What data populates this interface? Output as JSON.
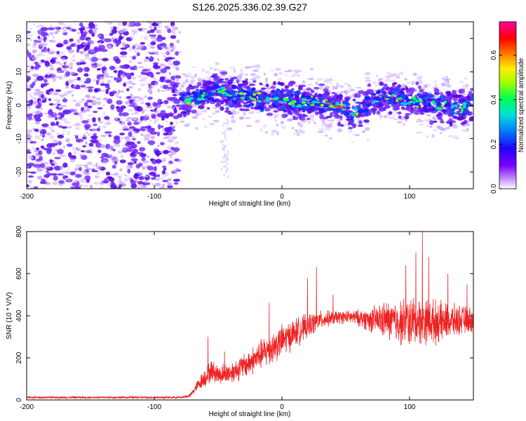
{
  "title": "S126.2025.336.02.39.G27",
  "colors": {
    "snr_line": "#ee2222",
    "spectrogram_core": "#3a00cc",
    "spectrogram_halo": "#c9a8ff",
    "axis": "#000000",
    "background": "#ffffff"
  },
  "chart_data": [
    {
      "type": "heatmap",
      "name": "spectrogram",
      "xlabel": "Height of straight line (km)",
      "ylabel": "Frequency (Hz)",
      "xlim": [
        -200,
        150
      ],
      "ylim": [
        -25,
        25
      ],
      "x_ticks": [
        -200,
        -100,
        0,
        100
      ],
      "x_tick_labels": [
        "-200",
        "-100",
        "0",
        "100"
      ],
      "y_ticks": [
        -20,
        -10,
        0,
        10,
        20
      ],
      "y_tick_labels": [
        "-20",
        "-10",
        "0",
        "10",
        "20"
      ],
      "noise_region": {
        "x_from": -200,
        "x_to": -80
      },
      "signal_centerline": [
        {
          "x": -80,
          "y": 1
        },
        {
          "x": -70,
          "y": 2
        },
        {
          "x": -60,
          "y": 3
        },
        {
          "x": -50,
          "y": 5
        },
        {
          "x": -40,
          "y": 3
        },
        {
          "x": -30,
          "y": 3
        },
        {
          "x": -20,
          "y": 2
        },
        {
          "x": -10,
          "y": 1
        },
        {
          "x": 0,
          "y": 2
        },
        {
          "x": 10,
          "y": 1
        },
        {
          "x": 20,
          "y": 1
        },
        {
          "x": 30,
          "y": 0.5
        },
        {
          "x": 40,
          "y": 0
        },
        {
          "x": 50,
          "y": -0.5
        },
        {
          "x": 55,
          "y": -3
        },
        {
          "x": 60,
          "y": -1
        },
        {
          "x": 70,
          "y": 1
        },
        {
          "x": 80,
          "y": 2
        },
        {
          "x": 90,
          "y": 2
        },
        {
          "x": 100,
          "y": 1
        },
        {
          "x": 110,
          "y": 1
        },
        {
          "x": 120,
          "y": 0
        },
        {
          "x": 130,
          "y": 0
        },
        {
          "x": 140,
          "y": -1
        },
        {
          "x": 150,
          "y": 0
        }
      ]
    },
    {
      "type": "colorbar",
      "name": "amplitude-colorbar",
      "label": "Normalized spectral amplitude",
      "range": [
        0,
        0.75
      ],
      "ticks": [
        0.0,
        0.2,
        0.4,
        0.6
      ],
      "tick_labels": [
        "0.0",
        "0.2",
        "0.4",
        "0.6"
      ],
      "colors": [
        "#ffffff",
        "#c8a0ff",
        "#7a00ff",
        "#2200ff",
        "#0077ff",
        "#00dddd",
        "#00ff55",
        "#99ff00",
        "#ffee00",
        "#ff7700",
        "#ff0000",
        "#ff0099"
      ]
    },
    {
      "type": "line",
      "name": "snr",
      "xlabel": "Height of straight line (km)",
      "ylabel": "SNR (10 * V/V)",
      "xlim": [
        -200,
        150
      ],
      "ylim": [
        0,
        800
      ],
      "x_ticks": [
        -200,
        -100,
        0,
        100
      ],
      "x_tick_labels": [
        "-200",
        "-100",
        "0",
        "100"
      ],
      "y_ticks": [
        0,
        200,
        400,
        600,
        800
      ],
      "y_tick_labels": [
        "0",
        "200",
        "400",
        "600",
        "800"
      ],
      "envelope": [
        {
          "x": -200,
          "mean": 12,
          "spread": 6
        },
        {
          "x": -80,
          "mean": 12,
          "spread": 6
        },
        {
          "x": -72,
          "mean": 20,
          "spread": 10
        },
        {
          "x": -66,
          "mean": 70,
          "spread": 30
        },
        {
          "x": -60,
          "mean": 110,
          "spread": 55
        },
        {
          "x": -55,
          "mean": 140,
          "spread": 60
        },
        {
          "x": -50,
          "mean": 120,
          "spread": 55
        },
        {
          "x": -40,
          "mean": 130,
          "spread": 60
        },
        {
          "x": -30,
          "mean": 160,
          "spread": 70
        },
        {
          "x": -20,
          "mean": 200,
          "spread": 80
        },
        {
          "x": -10,
          "mean": 240,
          "spread": 90
        },
        {
          "x": 0,
          "mean": 280,
          "spread": 90
        },
        {
          "x": 10,
          "mean": 320,
          "spread": 80
        },
        {
          "x": 20,
          "mean": 350,
          "spread": 70
        },
        {
          "x": 30,
          "mean": 380,
          "spread": 50
        },
        {
          "x": 40,
          "mean": 390,
          "spread": 40
        },
        {
          "x": 50,
          "mean": 395,
          "spread": 35
        },
        {
          "x": 60,
          "mean": 390,
          "spread": 45
        },
        {
          "x": 70,
          "mean": 380,
          "spread": 70
        },
        {
          "x": 80,
          "mean": 380,
          "spread": 100
        },
        {
          "x": 90,
          "mean": 370,
          "spread": 120
        },
        {
          "x": 100,
          "mean": 370,
          "spread": 140
        },
        {
          "x": 110,
          "mean": 380,
          "spread": 130
        },
        {
          "x": 120,
          "mean": 370,
          "spread": 120
        },
        {
          "x": 130,
          "mean": 370,
          "spread": 100
        },
        {
          "x": 140,
          "mean": 380,
          "spread": 80
        },
        {
          "x": 150,
          "mean": 380,
          "spread": 70
        }
      ],
      "spikes": [
        {
          "x": -58,
          "y": 300
        },
        {
          "x": -45,
          "y": 230
        },
        {
          "x": -10,
          "y": 460
        },
        {
          "x": 20,
          "y": 580
        },
        {
          "x": 27,
          "y": 630
        },
        {
          "x": 40,
          "y": 500
        },
        {
          "x": 97,
          "y": 640
        },
        {
          "x": 105,
          "y": 700
        },
        {
          "x": 110,
          "y": 800
        },
        {
          "x": 115,
          "y": 680
        },
        {
          "x": 130,
          "y": 600
        },
        {
          "x": 145,
          "y": 550
        }
      ]
    }
  ]
}
